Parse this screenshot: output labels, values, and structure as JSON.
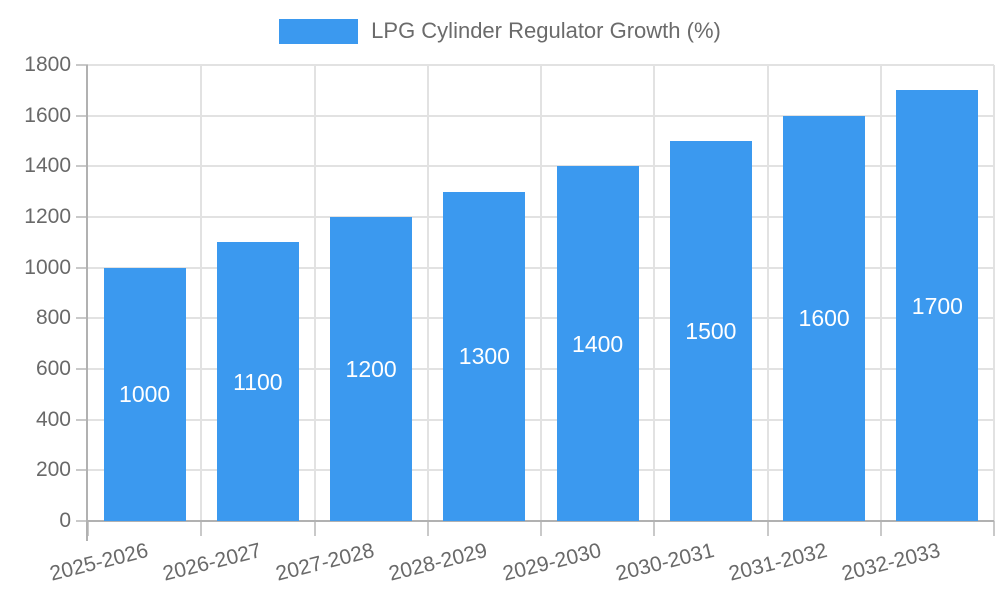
{
  "chart_data": {
    "type": "bar",
    "title": "LPG Cylinder Regulator Growth (%)",
    "legend": {
      "position": "top",
      "label": "LPG Cylinder Regulator Growth (%)"
    },
    "categories": [
      "2025-2026",
      "2026-2027",
      "2027-2028",
      "2028-2029",
      "2029-2030",
      "2030-2031",
      "2031-2032",
      "2032-2033"
    ],
    "values": [
      1000,
      1100,
      1200,
      1300,
      1400,
      1500,
      1600,
      1700
    ],
    "xlabel": "",
    "ylabel": "",
    "ylim": [
      0,
      1800
    ],
    "yticks": [
      0,
      200,
      400,
      600,
      800,
      1000,
      1200,
      1400,
      1600,
      1800
    ],
    "grid": true,
    "bar_labels_inside": true,
    "colors": {
      "bar": "#3b99ef",
      "bar_label_text": "#ffffff",
      "grid_line": "#e2e2e2",
      "axis_line": "#b1b1b1",
      "tick_mark": "#c9c9c9",
      "tick_text": "#696969",
      "legend_text": "#6b6b6b"
    }
  }
}
